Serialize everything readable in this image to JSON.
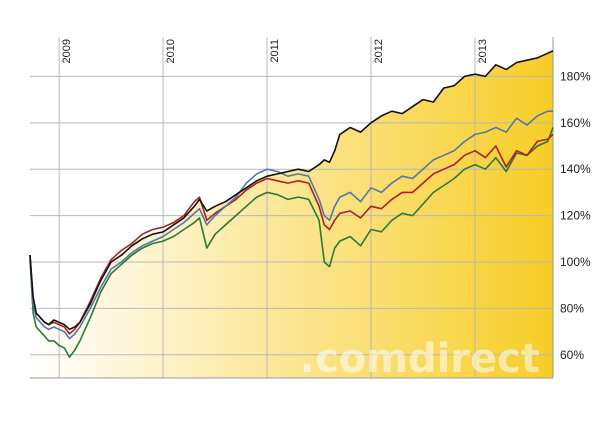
{
  "chart_data": {
    "type": "line",
    "title": "",
    "xlabel": "",
    "ylabel": "",
    "x_tick_labels": [
      "2009",
      "2010",
      "2011",
      "2012",
      "2013"
    ],
    "x_tick_values": [
      2009,
      2010,
      2011,
      2012,
      2013
    ],
    "xlim": [
      2008.72,
      2013.75
    ],
    "y_tick_labels": [
      "60%",
      "80%",
      "100%",
      "120%",
      "140%",
      "160%",
      "180%"
    ],
    "y_tick_values": [
      60,
      80,
      100,
      120,
      140,
      160,
      180
    ],
    "ylim": [
      50,
      197
    ],
    "grid": true,
    "watermark": ".comdirect",
    "area_fill_colors": [
      "#ffffff",
      "#f5c400"
    ],
    "series": [
      {
        "color": "#111111",
        "x": [
          2008.72,
          2008.75,
          2008.78,
          2008.82,
          2008.86,
          2008.9,
          2008.95,
          2009.0,
          2009.05,
          2009.1,
          2009.15,
          2009.2,
          2009.3,
          2009.4,
          2009.5,
          2009.6,
          2009.7,
          2009.8,
          2009.9,
          2010.0,
          2010.1,
          2010.2,
          2010.3,
          2010.35,
          2010.42,
          2010.5,
          2010.6,
          2010.7,
          2010.8,
          2010.9,
          2011.0,
          2011.1,
          2011.2,
          2011.3,
          2011.4,
          2011.5,
          2011.55,
          2011.6,
          2011.65,
          2011.7,
          2011.8,
          2011.9,
          2012.0,
          2012.1,
          2012.2,
          2012.3,
          2012.4,
          2012.5,
          2012.6,
          2012.7,
          2012.8,
          2012.9,
          2013.0,
          2013.1,
          2013.2,
          2013.3,
          2013.4,
          2013.5,
          2013.6,
          2013.7,
          2013.75
        ],
        "values": [
          103,
          85,
          78,
          76,
          74,
          73,
          75,
          74,
          73,
          71,
          72,
          74,
          82,
          92,
          100,
          103,
          107,
          110,
          112,
          113,
          116,
          119,
          124,
          127,
          122,
          124,
          126,
          129,
          132,
          135,
          137,
          138,
          139,
          140,
          139,
          142,
          144,
          143,
          148,
          155,
          158,
          156,
          160,
          163,
          165,
          164,
          167,
          170,
          169,
          175,
          176,
          180,
          181,
          180,
          185,
          183,
          186,
          187,
          188,
          190,
          191
        ]
      },
      {
        "color": "#5577aa",
        "x": [
          2008.72,
          2008.75,
          2008.78,
          2008.82,
          2008.86,
          2008.9,
          2008.95,
          2009.0,
          2009.05,
          2009.1,
          2009.15,
          2009.2,
          2009.3,
          2009.4,
          2009.5,
          2009.6,
          2009.7,
          2009.8,
          2009.9,
          2010.0,
          2010.1,
          2010.2,
          2010.3,
          2010.35,
          2010.42,
          2010.5,
          2010.6,
          2010.7,
          2010.8,
          2010.9,
          2011.0,
          2011.1,
          2011.2,
          2011.3,
          2011.4,
          2011.5,
          2011.55,
          2011.6,
          2011.65,
          2011.7,
          2011.8,
          2011.9,
          2012.0,
          2012.1,
          2012.2,
          2012.3,
          2012.4,
          2012.5,
          2012.6,
          2012.7,
          2012.8,
          2012.9,
          2013.0,
          2013.1,
          2013.2,
          2013.3,
          2013.4,
          2013.5,
          2013.6,
          2013.7,
          2013.75
        ],
        "values": [
          102,
          82,
          76,
          74,
          72,
          71,
          72,
          71,
          70,
          67,
          69,
          72,
          80,
          89,
          97,
          100,
          104,
          107,
          109,
          111,
          114,
          117,
          121,
          123,
          116,
          120,
          124,
          128,
          134,
          138,
          140,
          139,
          137,
          138,
          137,
          127,
          120,
          118,
          124,
          128,
          130,
          126,
          132,
          130,
          134,
          137,
          136,
          140,
          144,
          146,
          148,
          152,
          155,
          156,
          158,
          156,
          162,
          159,
          163,
          165,
          165
        ]
      },
      {
        "color": "#aa2222",
        "x": [
          2008.72,
          2008.75,
          2008.78,
          2008.82,
          2008.86,
          2008.9,
          2008.95,
          2009.0,
          2009.05,
          2009.1,
          2009.15,
          2009.2,
          2009.3,
          2009.4,
          2009.5,
          2009.6,
          2009.7,
          2009.8,
          2009.9,
          2010.0,
          2010.1,
          2010.2,
          2010.3,
          2010.35,
          2010.42,
          2010.5,
          2010.6,
          2010.7,
          2010.8,
          2010.9,
          2011.0,
          2011.1,
          2011.2,
          2011.3,
          2011.4,
          2011.5,
          2011.55,
          2011.6,
          2011.65,
          2011.7,
          2011.8,
          2011.9,
          2012.0,
          2012.1,
          2012.2,
          2012.3,
          2012.4,
          2012.5,
          2012.6,
          2012.7,
          2012.8,
          2012.9,
          2013.0,
          2013.1,
          2013.2,
          2013.3,
          2013.4,
          2013.5,
          2013.6,
          2013.7,
          2013.75
        ],
        "values": [
          103,
          84,
          78,
          76,
          74,
          73,
          74,
          73,
          72,
          69,
          71,
          74,
          83,
          93,
          101,
          105,
          108,
          112,
          114,
          115,
          117,
          120,
          126,
          128,
          118,
          121,
          124,
          127,
          131,
          134,
          136,
          135,
          134,
          135,
          134,
          124,
          116,
          114,
          118,
          121,
          122,
          119,
          124,
          123,
          127,
          130,
          130,
          134,
          138,
          140,
          142,
          146,
          148,
          145,
          150,
          141,
          148,
          146,
          152,
          153,
          155
        ]
      },
      {
        "color": "#2a7a3a",
        "x": [
          2008.72,
          2008.75,
          2008.78,
          2008.82,
          2008.86,
          2008.9,
          2008.95,
          2009.0,
          2009.05,
          2009.1,
          2009.15,
          2009.2,
          2009.3,
          2009.4,
          2009.5,
          2009.6,
          2009.7,
          2009.8,
          2009.9,
          2010.0,
          2010.1,
          2010.2,
          2010.3,
          2010.35,
          2010.42,
          2010.5,
          2010.6,
          2010.7,
          2010.8,
          2010.9,
          2011.0,
          2011.1,
          2011.2,
          2011.3,
          2011.4,
          2011.5,
          2011.55,
          2011.6,
          2011.65,
          2011.7,
          2011.8,
          2011.9,
          2012.0,
          2012.1,
          2012.2,
          2012.3,
          2012.4,
          2012.5,
          2012.6,
          2012.7,
          2012.8,
          2012.9,
          2013.0,
          2013.1,
          2013.2,
          2013.3,
          2013.4,
          2013.5,
          2013.6,
          2013.7,
          2013.75
        ],
        "values": [
          101,
          78,
          72,
          70,
          68,
          66,
          66,
          64,
          63,
          59,
          62,
          66,
          76,
          87,
          95,
          99,
          103,
          106,
          108,
          109,
          111,
          114,
          117,
          119,
          106,
          112,
          116,
          120,
          124,
          128,
          130,
          129,
          127,
          128,
          127,
          118,
          100,
          98,
          106,
          109,
          111,
          107,
          114,
          113,
          118,
          121,
          120,
          125,
          130,
          133,
          136,
          140,
          142,
          140,
          145,
          139,
          147,
          146,
          150,
          152,
          158
        ]
      }
    ]
  }
}
